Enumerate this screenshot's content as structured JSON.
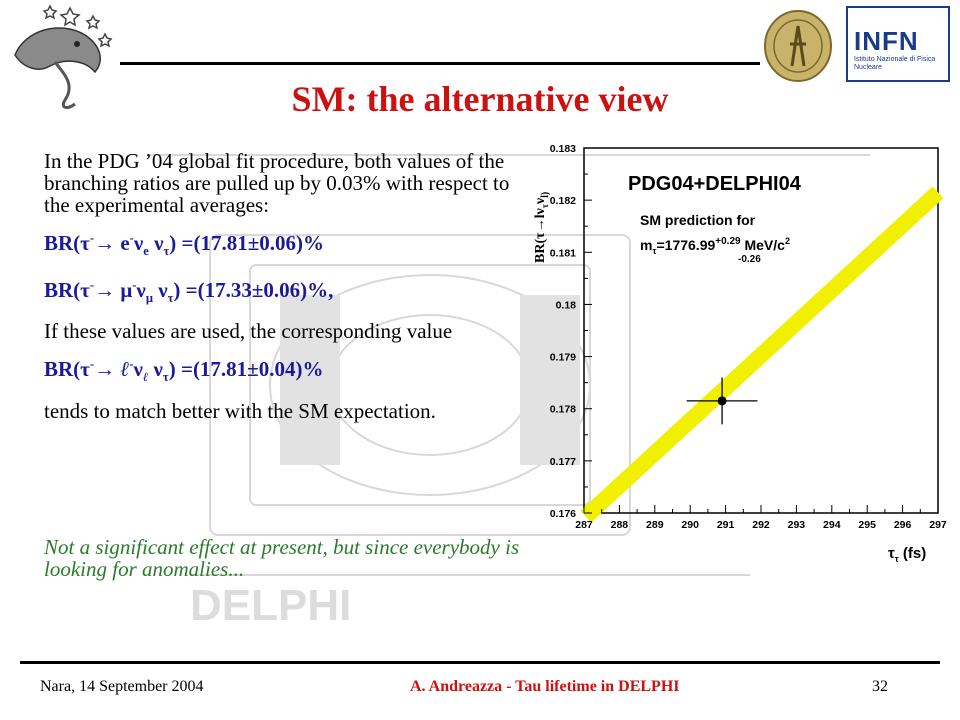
{
  "slide": {
    "title": "SM: the alternative view",
    "paragraph1": "In the PDG ’04 global fit procedure, both values of the branching ratios are pulled up by 0.03% with respect to the experimental averages:",
    "br_e": {
      "prefix": "BR(τ",
      "arrow": "→ e",
      "nu_e": "ν",
      "nu_e_sub": "e",
      "nu_tau": " ν",
      "nu_tau_sub": "τ",
      "value": ")  =(17.81±0.06)%"
    },
    "br_mu": {
      "prefix": "BR(τ",
      "arrow": "→ μ",
      "nu_mu": "ν",
      "nu_mu_sub": "μ",
      "nu_tau": " ν",
      "nu_tau_sub": "τ",
      "value": ") =(17.33±0.06)%,"
    },
    "paragraph2": "If these values are used, the corresponding value",
    "br_l": {
      "prefix": "BR(τ",
      "arrow": "→ ",
      "lep": "ℓ",
      "nu_l": "ν",
      "nu_l_sub": "ℓ",
      "nu_tau": " ν",
      "nu_tau_sub": "τ",
      "value": ")  =(17.81±0.04)%"
    },
    "paragraph3": "tends to match better with the SM expectation.",
    "note": "Not a significant effect at present, but since everybody is looking for anomalies...",
    "background_watermark": "DELPHI"
  },
  "footer": {
    "left": "Nara, 14 September 2004",
    "center": "A. Andreazza - Tau lifetime in DELPHI",
    "right": "32"
  },
  "logos": {
    "right_text": "INFN",
    "right_subtext": "Istituto Nazionale di Fisica Nucleare"
  },
  "colors": {
    "title": "#cc1111",
    "br_text": "#1a1a9a",
    "note": "#2a7a2a",
    "band": "#f0f000"
  },
  "chart_data": {
    "type": "scatter",
    "title": "PDG04+DELPHI04",
    "annotation_line1": "SM prediction for",
    "annotation_line2": "m",
    "annotation_sub": "τ",
    "annotation_value": "=1776.99",
    "annotation_sup": "+0.29",
    "annotation_down": "-0.26",
    "annotation_unit": "MeV/c",
    "annotation_unit_sup": "2",
    "xlabel": "τ",
    "xlabel_sub": "τ",
    "xlabel_unit": " (fs)",
    "ylabel": "BR(τ→lν",
    "ylabel_sub": "τ",
    "ylabel_end": "ν",
    "ylabel_end2": "l)",
    "xlim": [
      287,
      297
    ],
    "ylim": [
      0.176,
      0.183
    ],
    "xticks": [
      287,
      288,
      289,
      290,
      291,
      292,
      293,
      294,
      295,
      296,
      297
    ],
    "yticks": [
      0.176,
      0.177,
      0.178,
      0.179,
      0.18,
      0.181,
      0.182,
      0.183
    ],
    "ytick_labels": [
      "0.176",
      "0.177",
      "0.178",
      "0.179",
      "0.18",
      "0.181",
      "0.182",
      "0.183"
    ],
    "point": {
      "x": 290.9,
      "y": 0.17815,
      "xerr": 1.0,
      "yerr": 0.00045
    },
    "band": {
      "x_start": 287.05,
      "y_start": 0.17593,
      "x_end": 297.0,
      "y_end": 0.18215
    }
  }
}
